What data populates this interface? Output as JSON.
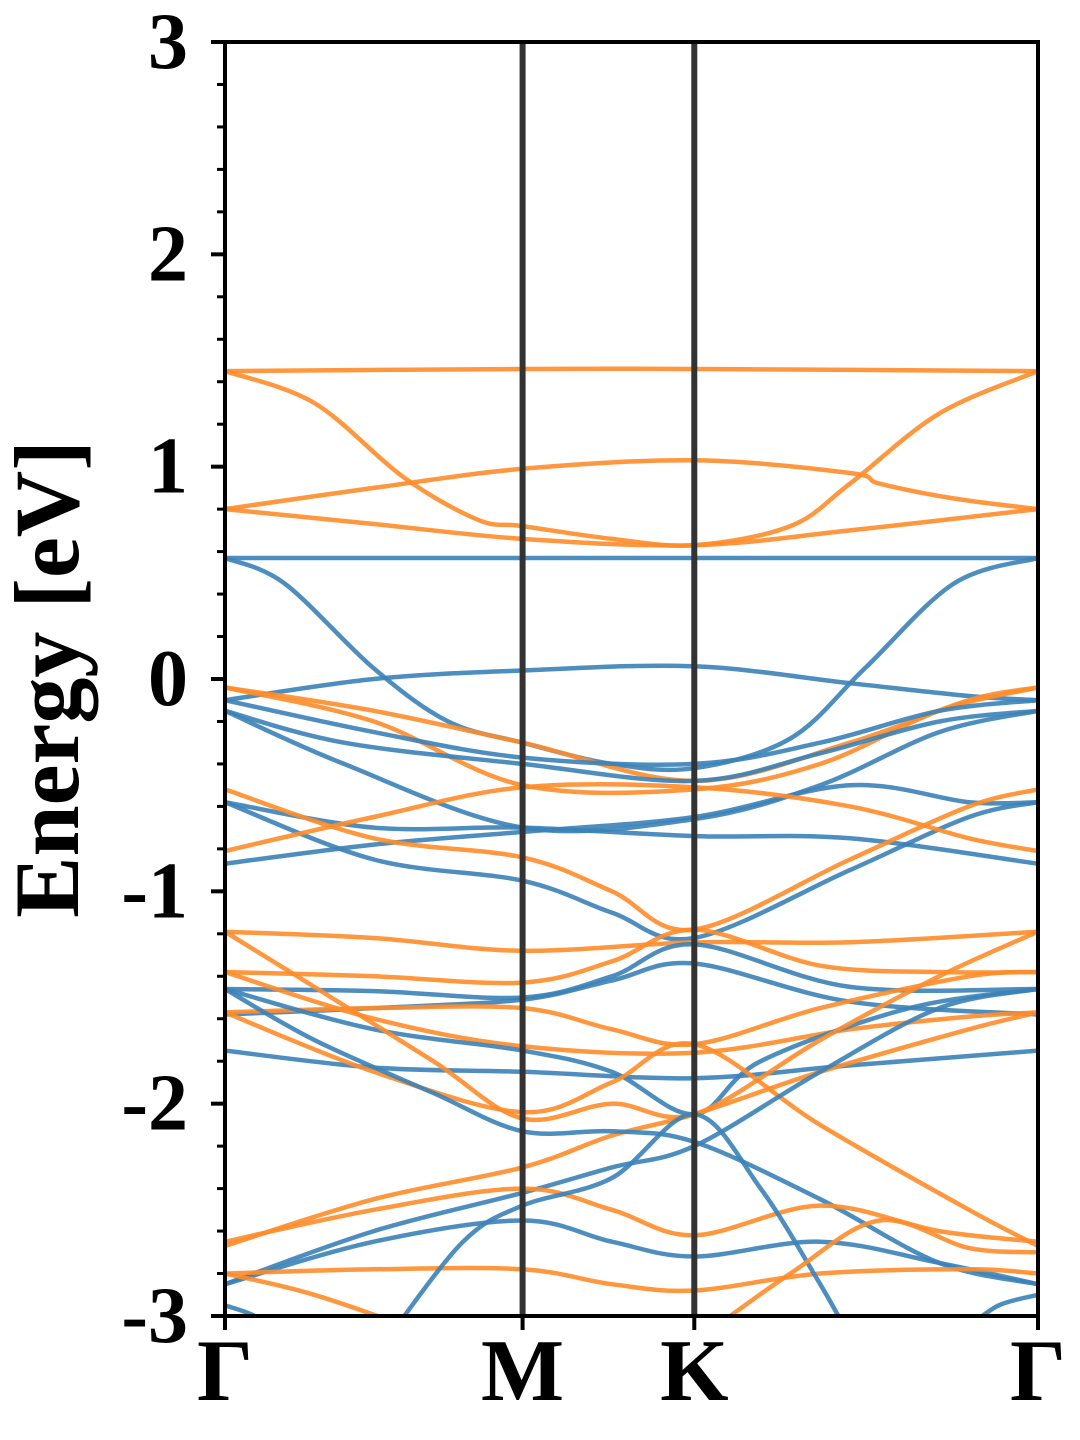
{
  "chart_data": {
    "type": "line",
    "title": "",
    "xlabel": "",
    "ylabel": "Energy [eV]",
    "ylim": [
      -3,
      3
    ],
    "y_ticks": [
      "-3",
      "-2",
      "-1",
      "0",
      "1",
      "2",
      "3"
    ],
    "y_tick_values": [
      -3,
      -2,
      -1,
      0,
      1,
      2,
      3
    ],
    "minor_y_step": 0.2,
    "k_points": [
      {
        "label": "Γ",
        "k": 0.0
      },
      {
        "label": "M",
        "k": 1.0
      },
      {
        "label": "K",
        "k": 1.577
      },
      {
        "label": "Γ",
        "k": 2.732
      }
    ],
    "xlim": [
      0.0,
      2.732
    ],
    "grid": false,
    "legend": "none",
    "colors": {
      "spin_up": "#3b82b8",
      "spin_down": "#ff8c2a",
      "k_lines": "#333333"
    },
    "series": [
      {
        "group": "spin_down",
        "points": [
          [
            0,
            1.45
          ],
          [
            1.0,
            1.46
          ],
          [
            1.577,
            1.46
          ],
          [
            2.732,
            1.45
          ]
        ]
      },
      {
        "group": "spin_down",
        "points": [
          [
            0,
            1.45
          ],
          [
            0.3,
            1.3
          ],
          [
            0.6,
            0.95
          ],
          [
            0.85,
            0.75
          ],
          [
            1.0,
            0.72
          ],
          [
            1.3,
            0.66
          ],
          [
            1.577,
            0.63
          ],
          [
            1.9,
            0.72
          ],
          [
            2.1,
            0.92
          ],
          [
            2.4,
            1.25
          ],
          [
            2.732,
            1.45
          ]
        ]
      },
      {
        "group": "spin_down",
        "points": [
          [
            0,
            0.8
          ],
          [
            0.5,
            0.9
          ],
          [
            1.0,
            0.99
          ],
          [
            1.577,
            1.03
          ],
          [
            2.1,
            0.97
          ],
          [
            2.2,
            0.92
          ],
          [
            2.45,
            0.85
          ],
          [
            2.732,
            0.8
          ]
        ]
      },
      {
        "group": "spin_down",
        "points": [
          [
            0,
            0.8
          ],
          [
            0.5,
            0.73
          ],
          [
            1.0,
            0.66
          ],
          [
            1.577,
            0.63
          ],
          [
            2.1,
            0.7
          ],
          [
            2.732,
            0.8
          ]
        ]
      },
      {
        "group": "spin_up",
        "points": [
          [
            0,
            0.57
          ],
          [
            1.0,
            0.57
          ],
          [
            1.577,
            0.57
          ],
          [
            2.732,
            0.57
          ]
        ]
      },
      {
        "group": "spin_up",
        "points": [
          [
            0,
            0.57
          ],
          [
            0.2,
            0.45
          ],
          [
            0.5,
            0.05
          ],
          [
            0.75,
            -0.2
          ],
          [
            1.0,
            -0.3
          ],
          [
            1.3,
            -0.4
          ],
          [
            1.577,
            -0.42
          ],
          [
            1.9,
            -0.28
          ],
          [
            2.15,
            0.05
          ],
          [
            2.45,
            0.45
          ],
          [
            2.732,
            0.57
          ]
        ]
      },
      {
        "group": "spin_up",
        "points": [
          [
            0,
            -0.1
          ],
          [
            0.5,
            0.0
          ],
          [
            1.0,
            0.04
          ],
          [
            1.577,
            0.06
          ],
          [
            2.1,
            -0.02
          ],
          [
            2.5,
            -0.08
          ],
          [
            2.732,
            -0.1
          ]
        ]
      },
      {
        "group": "spin_down",
        "points": [
          [
            0,
            -0.04
          ],
          [
            0.5,
            -0.15
          ],
          [
            1.0,
            -0.3
          ],
          [
            1.577,
            -0.48
          ],
          [
            2.1,
            -0.3
          ],
          [
            2.5,
            -0.1
          ],
          [
            2.732,
            -0.04
          ]
        ]
      },
      {
        "group": "spin_down",
        "points": [
          [
            0,
            -0.04
          ],
          [
            0.5,
            -0.2
          ],
          [
            1.0,
            -0.5
          ],
          [
            1.577,
            -0.52
          ],
          [
            2.0,
            -0.4
          ],
          [
            2.4,
            -0.15
          ],
          [
            2.732,
            -0.04
          ]
        ]
      },
      {
        "group": "spin_up",
        "points": [
          [
            0,
            -0.1
          ],
          [
            0.5,
            -0.25
          ],
          [
            1.0,
            -0.37
          ],
          [
            1.577,
            -0.4
          ],
          [
            2.0,
            -0.3
          ],
          [
            2.4,
            -0.15
          ],
          [
            2.732,
            -0.1
          ]
        ]
      },
      {
        "group": "spin_up",
        "points": [
          [
            0,
            -0.15
          ],
          [
            0.4,
            -0.3
          ],
          [
            1.0,
            -0.4
          ],
          [
            1.577,
            -0.48
          ],
          [
            2.0,
            -0.35
          ],
          [
            2.4,
            -0.2
          ],
          [
            2.732,
            -0.15
          ]
        ]
      },
      {
        "group": "spin_up",
        "points": [
          [
            0,
            -0.15
          ],
          [
            0.4,
            -0.4
          ],
          [
            1.0,
            -0.7
          ],
          [
            1.577,
            -0.66
          ],
          [
            2.0,
            -0.5
          ],
          [
            2.4,
            -0.25
          ],
          [
            2.732,
            -0.15
          ]
        ]
      },
      {
        "group": "spin_up",
        "points": [
          [
            0,
            -0.58
          ],
          [
            0.5,
            -0.7
          ],
          [
            1.0,
            -0.7
          ],
          [
            1.577,
            -0.74
          ],
          [
            2.1,
            -0.75
          ],
          [
            2.732,
            -0.87
          ]
        ]
      },
      {
        "group": "spin_up",
        "points": [
          [
            0,
            -0.87
          ],
          [
            0.5,
            -0.78
          ],
          [
            1.0,
            -0.72
          ],
          [
            1.577,
            -0.65
          ],
          [
            2.1,
            -0.5
          ],
          [
            2.5,
            -0.58
          ],
          [
            2.732,
            -0.58
          ]
        ]
      },
      {
        "group": "spin_up",
        "points": [
          [
            0,
            -0.58
          ],
          [
            0.5,
            -0.85
          ],
          [
            1.0,
            -0.95
          ],
          [
            1.3,
            -1.1
          ],
          [
            1.577,
            -1.22
          ],
          [
            2.1,
            -0.9
          ],
          [
            2.5,
            -0.65
          ],
          [
            2.732,
            -0.58
          ]
        ]
      },
      {
        "group": "spin_down",
        "points": [
          [
            0,
            -0.52
          ],
          [
            0.5,
            -0.75
          ],
          [
            1.0,
            -0.84
          ],
          [
            1.3,
            -1.0
          ],
          [
            1.577,
            -1.18
          ],
          [
            2.1,
            -0.85
          ],
          [
            2.5,
            -0.6
          ],
          [
            2.732,
            -0.52
          ]
        ]
      },
      {
        "group": "spin_down",
        "points": [
          [
            0,
            -0.81
          ],
          [
            0.5,
            -0.65
          ],
          [
            1.0,
            -0.51
          ],
          [
            1.577,
            -0.51
          ],
          [
            2.1,
            -0.6
          ],
          [
            2.5,
            -0.75
          ],
          [
            2.732,
            -0.81
          ]
        ]
      },
      {
        "group": "spin_down",
        "points": [
          [
            0,
            -1.19
          ],
          [
            0.5,
            -1.22
          ],
          [
            1.0,
            -1.28
          ],
          [
            1.577,
            -1.24
          ],
          [
            2.1,
            -1.24
          ],
          [
            2.732,
            -1.19
          ]
        ]
      },
      {
        "group": "spin_down",
        "points": [
          [
            0,
            -1.38
          ],
          [
            0.5,
            -1.4
          ],
          [
            1.0,
            -1.43
          ],
          [
            1.3,
            -1.33
          ],
          [
            1.577,
            -1.18
          ],
          [
            2.0,
            -1.35
          ],
          [
            2.4,
            -1.38
          ],
          [
            2.732,
            -1.38
          ]
        ]
      },
      {
        "group": "spin_up",
        "points": [
          [
            0,
            -1.46
          ],
          [
            0.5,
            -1.47
          ],
          [
            1.0,
            -1.5
          ],
          [
            1.3,
            -1.4
          ],
          [
            1.577,
            -1.25
          ],
          [
            2.1,
            -1.45
          ],
          [
            2.732,
            -1.46
          ]
        ]
      },
      {
        "group": "spin_up",
        "points": [
          [
            0,
            -1.58
          ],
          [
            0.5,
            -1.55
          ],
          [
            1.0,
            -1.51
          ],
          [
            1.3,
            -1.42
          ],
          [
            1.577,
            -1.34
          ],
          [
            2.1,
            -1.52
          ],
          [
            2.732,
            -1.58
          ]
        ]
      },
      {
        "group": "spin_down",
        "points": [
          [
            0,
            -1.57
          ],
          [
            0.5,
            -1.55
          ],
          [
            1.0,
            -1.55
          ],
          [
            1.3,
            -1.65
          ],
          [
            1.577,
            -1.72
          ],
          [
            2.0,
            -1.55
          ],
          [
            2.5,
            -1.4
          ],
          [
            2.732,
            -1.38
          ]
        ]
      },
      {
        "group": "spin_down",
        "points": [
          [
            0,
            -1.38
          ],
          [
            0.5,
            -1.6
          ],
          [
            1.0,
            -1.73
          ],
          [
            1.577,
            -1.76
          ],
          [
            2.1,
            -1.65
          ],
          [
            2.5,
            -1.59
          ],
          [
            2.732,
            -1.57
          ]
        ]
      },
      {
        "group": "spin_up",
        "points": [
          [
            0,
            -1.75
          ],
          [
            0.5,
            -1.83
          ],
          [
            1.0,
            -1.85
          ],
          [
            1.577,
            -1.88
          ],
          [
            2.1,
            -1.82
          ],
          [
            2.732,
            -1.75
          ]
        ]
      },
      {
        "group": "spin_up",
        "points": [
          [
            0,
            -1.46
          ],
          [
            0.5,
            -1.65
          ],
          [
            1.0,
            -1.75
          ],
          [
            1.3,
            -1.85
          ],
          [
            1.577,
            -2.05
          ],
          [
            1.8,
            -1.8
          ],
          [
            2.3,
            -1.55
          ],
          [
            2.732,
            -1.46
          ]
        ]
      },
      {
        "group": "spin_down",
        "points": [
          [
            0,
            -2.67
          ],
          [
            0.5,
            -2.45
          ],
          [
            1.0,
            -2.3
          ],
          [
            1.3,
            -2.15
          ],
          [
            1.577,
            -2.05
          ],
          [
            2.0,
            -1.85
          ],
          [
            2.5,
            -1.65
          ],
          [
            2.732,
            -1.57
          ]
        ]
      },
      {
        "group": "spin_down",
        "points": [
          [
            0,
            -1.57
          ],
          [
            0.5,
            -1.85
          ],
          [
            1.0,
            -2.04
          ],
          [
            1.3,
            -1.9
          ],
          [
            1.577,
            -1.72
          ],
          [
            2.0,
            -2.1
          ],
          [
            2.5,
            -2.5
          ],
          [
            2.732,
            -2.67
          ]
        ]
      },
      {
        "group": "spin_down",
        "points": [
          [
            0,
            -1.19
          ],
          [
            0.3,
            -1.45
          ],
          [
            0.7,
            -1.8
          ],
          [
            1.0,
            -2.07
          ],
          [
            1.3,
            -2.0
          ],
          [
            1.577,
            -2.05
          ],
          [
            2.0,
            -1.7
          ],
          [
            2.4,
            -1.4
          ],
          [
            2.732,
            -1.19
          ]
        ]
      },
      {
        "group": "spin_up",
        "points": [
          [
            0,
            -1.46
          ],
          [
            0.3,
            -1.7
          ],
          [
            0.7,
            -1.95
          ],
          [
            1.0,
            -2.13
          ],
          [
            1.3,
            -2.13
          ],
          [
            1.577,
            -2.18
          ],
          [
            2.0,
            -2.45
          ],
          [
            2.4,
            -2.75
          ],
          [
            2.732,
            -2.85
          ]
        ]
      },
      {
        "group": "spin_up",
        "points": [
          [
            0,
            -2.85
          ],
          [
            0.5,
            -2.6
          ],
          [
            1.0,
            -2.42
          ],
          [
            1.3,
            -2.3
          ],
          [
            1.577,
            -2.2
          ],
          [
            2.0,
            -1.85
          ],
          [
            2.4,
            -1.55
          ],
          [
            2.732,
            -1.46
          ]
        ]
      },
      {
        "group": "spin_down",
        "points": [
          [
            0,
            -2.65
          ],
          [
            0.5,
            -2.5
          ],
          [
            1.0,
            -2.4
          ],
          [
            1.3,
            -2.5
          ],
          [
            1.577,
            -2.62
          ],
          [
            2.0,
            -2.48
          ],
          [
            2.4,
            -2.6
          ],
          [
            2.732,
            -2.65
          ]
        ]
      },
      {
        "group": "spin_up",
        "points": [
          [
            0,
            -2.85
          ],
          [
            0.5,
            -2.65
          ],
          [
            1.0,
            -2.55
          ],
          [
            1.3,
            -2.65
          ],
          [
            1.577,
            -2.72
          ],
          [
            2.0,
            -2.65
          ],
          [
            2.4,
            -2.75
          ],
          [
            2.732,
            -2.85
          ]
        ]
      },
      {
        "group": "spin_down",
        "points": [
          [
            0,
            -2.8
          ],
          [
            0.5,
            -2.78
          ],
          [
            1.0,
            -2.78
          ],
          [
            1.3,
            -2.85
          ],
          [
            1.577,
            -2.88
          ],
          [
            2.0,
            -2.8
          ],
          [
            2.5,
            -2.78
          ],
          [
            2.732,
            -2.8
          ]
        ]
      },
      {
        "group": "spin_down",
        "points": [
          [
            0,
            -2.8
          ],
          [
            0.3,
            -2.9
          ],
          [
            0.7,
            -3.1
          ],
          [
            1.0,
            -3.3
          ]
        ]
      },
      {
        "group": "spin_up",
        "points": [
          [
            0,
            -2.95
          ],
          [
            0.1,
            -3.0
          ],
          [
            0.2,
            -3.1
          ]
        ]
      },
      {
        "group": "spin_up",
        "points": [
          [
            0.55,
            -3.1
          ],
          [
            0.8,
            -2.65
          ],
          [
            1.0,
            -2.48
          ],
          [
            1.3,
            -2.35
          ],
          [
            1.577,
            -2.05
          ],
          [
            1.8,
            -2.4
          ],
          [
            2.0,
            -2.85
          ],
          [
            2.1,
            -3.1
          ]
        ]
      },
      {
        "group": "spin_down",
        "points": [
          [
            1.6,
            -3.1
          ],
          [
            1.9,
            -2.8
          ],
          [
            2.2,
            -2.55
          ],
          [
            2.5,
            -2.68
          ],
          [
            2.732,
            -2.7
          ]
        ]
      },
      {
        "group": "spin_up",
        "points": [
          [
            2.5,
            -3.05
          ],
          [
            2.6,
            -2.95
          ],
          [
            2.732,
            -2.9
          ]
        ]
      }
    ]
  }
}
